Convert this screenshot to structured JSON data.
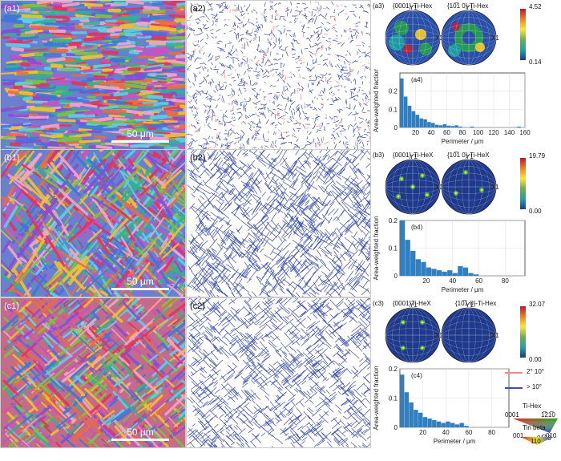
{
  "rows": [
    {
      "ebsd_label": "(a1)",
      "boundary_label": "(a2)",
      "pf_label": "(a3)",
      "pf_title_1": "{0001}-Ti-Hex",
      "pf_title_2": "{10̅1 0}-Ti-Hex",
      "pf_max": "4.52",
      "pf_min": "0.14",
      "hist_label": "(a4)",
      "scale": "50 μm"
    },
    {
      "ebsd_label": "(b1)",
      "boundary_label": "(b2)",
      "pf_label": "(b3)",
      "pf_title_1": "{0001}-Ti-HeX",
      "pf_title_2": "{10̅1 0}-Ti-HeX",
      "pf_max": "19.79",
      "pf_min": "0.00",
      "hist_label": "(b4)",
      "scale": "50 μm"
    },
    {
      "ebsd_label": "(c1)",
      "boundary_label": "(c2)",
      "pf_label": "(c3)",
      "pf_title_1": "{0001}Ti-HeX",
      "pf_title_2": "{10̅1 0}-Ti-Hex",
      "pf_max": "32.07",
      "pf_min": "0.00",
      "hist_label": "(c4)",
      "scale": "50 μm"
    }
  ],
  "pf_axis_labels": {
    "y": "Y1",
    "x": "X1"
  },
  "legend": {
    "low_angle": "2° 10°",
    "high_angle": "> 10°",
    "low_color": "#f08a8a",
    "high_color": "#3a4fb0",
    "ti_hex_title": "Ti-Hex",
    "ti_hex_0001": "0001",
    "ti_hex_1210": "1̅21̅0",
    "ti_hex_0110": "01̅10",
    "tin_beta_title": "Tin beta",
    "tin_001": "001",
    "tin_010": "010",
    "tin_110": "110"
  },
  "chart_data": [
    {
      "type": "bar",
      "title": "",
      "xlabel": "Perimeter / μm",
      "ylabel": "Area-weighted fraction",
      "xlim": [
        0,
        160
      ],
      "ylim": [
        0,
        0.3
      ],
      "xticks": [
        20,
        40,
        60,
        80,
        100,
        120,
        140,
        160
      ],
      "yticks": [
        0,
        0.1,
        0.2
      ],
      "bin_width": 5,
      "x": [
        5,
        10,
        15,
        20,
        25,
        30,
        35,
        40,
        45,
        50,
        55,
        60,
        65,
        70,
        75,
        80,
        95,
        155
      ],
      "values": [
        0.27,
        0.17,
        0.12,
        0.09,
        0.07,
        0.05,
        0.045,
        0.03,
        0.025,
        0.015,
        0.012,
        0.018,
        0.01,
        0.008,
        0.012,
        0.005,
        0.005,
        0.005
      ]
    },
    {
      "type": "bar",
      "title": "",
      "xlabel": "Perimeter / μm",
      "ylabel": "Area-weighted fraction",
      "xlim": [
        0,
        95
      ],
      "ylim": [
        0,
        0.2
      ],
      "xticks": [
        20,
        40,
        60,
        80
      ],
      "yticks": [
        0.0,
        0.1,
        0.2
      ],
      "bin_width": 4,
      "x": [
        4,
        8,
        12,
        16,
        20,
        24,
        28,
        32,
        36,
        40,
        44,
        48,
        52,
        56,
        60
      ],
      "values": [
        0.2,
        0.13,
        0.09,
        0.06,
        0.05,
        0.03,
        0.025,
        0.02,
        0.015,
        0.02,
        0.01,
        0.035,
        0.03,
        0.01,
        0.005
      ]
    },
    {
      "type": "bar",
      "title": "",
      "xlabel": "Perimeter / μm",
      "ylabel": "Area-weighted fraction",
      "xlim": [
        0,
        95
      ],
      "ylim": [
        0,
        0.2
      ],
      "xticks": [
        20,
        40,
        60,
        80
      ],
      "yticks": [
        0.0,
        0.1,
        0.2
      ],
      "bin_width": 4,
      "x": [
        4,
        8,
        12,
        16,
        20,
        24,
        28,
        32,
        36,
        40,
        44,
        48,
        52,
        56,
        60
      ],
      "values": [
        0.18,
        0.12,
        0.085,
        0.06,
        0.05,
        0.035,
        0.03,
        0.025,
        0.02,
        0.015,
        0.02,
        0.015,
        0.01,
        0.015,
        0.005
      ]
    }
  ]
}
